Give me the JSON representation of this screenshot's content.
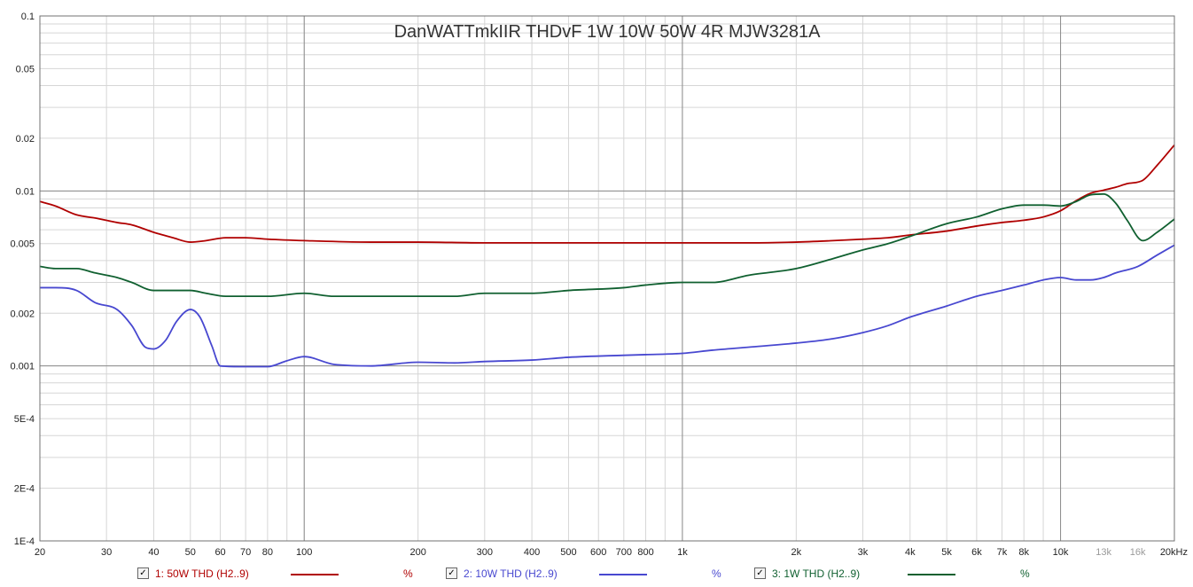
{
  "chart_data": {
    "type": "line",
    "title": "DanWATTmkIIR THDvF 1W 10W 50W 4R MJW3281A",
    "x_scale": "log",
    "y_scale": "log",
    "xlim": [
      20,
      20000
    ],
    "ylim": [
      0.0001,
      0.1
    ],
    "y_unit": "%",
    "grid": true,
    "x_ticks": [
      {
        "v": 20,
        "label": "20"
      },
      {
        "v": 30,
        "label": "30"
      },
      {
        "v": 40,
        "label": "40"
      },
      {
        "v": 50,
        "label": "50"
      },
      {
        "v": 60,
        "label": "60"
      },
      {
        "v": 70,
        "label": "70"
      },
      {
        "v": 80,
        "label": "80"
      },
      {
        "v": 100,
        "label": "100"
      },
      {
        "v": 200,
        "label": "200"
      },
      {
        "v": 300,
        "label": "300"
      },
      {
        "v": 400,
        "label": "400"
      },
      {
        "v": 500,
        "label": "500"
      },
      {
        "v": 600,
        "label": "600"
      },
      {
        "v": 700,
        "label": "700"
      },
      {
        "v": 800,
        "label": "800"
      },
      {
        "v": 1000,
        "label": "1k"
      },
      {
        "v": 2000,
        "label": "2k"
      },
      {
        "v": 3000,
        "label": "3k"
      },
      {
        "v": 4000,
        "label": "4k"
      },
      {
        "v": 5000,
        "label": "5k"
      },
      {
        "v": 6000,
        "label": "6k"
      },
      {
        "v": 7000,
        "label": "7k"
      },
      {
        "v": 8000,
        "label": "8k"
      },
      {
        "v": 10000,
        "label": "10k"
      },
      {
        "v": 13000,
        "label": "13k",
        "faint": true
      },
      {
        "v": 16000,
        "label": "16k",
        "faint": true
      },
      {
        "v": 20000,
        "label": "20kHz"
      }
    ],
    "y_ticks": [
      {
        "v": 0.1,
        "label": "0.1"
      },
      {
        "v": 0.05,
        "label": "0.05"
      },
      {
        "v": 0.02,
        "label": "0.02"
      },
      {
        "v": 0.01,
        "label": "0.01"
      },
      {
        "v": 0.005,
        "label": "0.005"
      },
      {
        "v": 0.002,
        "label": "0.002"
      },
      {
        "v": 0.001,
        "label": "0.001"
      },
      {
        "v": 0.0005,
        "label": "5E-4"
      },
      {
        "v": 0.0002,
        "label": "2E-4"
      },
      {
        "v": 0.0001,
        "label": "1E-4"
      }
    ],
    "series": [
      {
        "name": "1: 50W THD (H2..9)",
        "unit": "%",
        "color": "#b00000",
        "points": [
          [
            20,
            0.0087
          ],
          [
            22,
            0.0082
          ],
          [
            25,
            0.0073
          ],
          [
            28,
            0.007
          ],
          [
            32,
            0.0066
          ],
          [
            35,
            0.0064
          ],
          [
            40,
            0.0058
          ],
          [
            45,
            0.0054
          ],
          [
            50,
            0.0051
          ],
          [
            55,
            0.0052
          ],
          [
            62,
            0.0054
          ],
          [
            70,
            0.0054
          ],
          [
            80,
            0.0053
          ],
          [
            100,
            0.0052
          ],
          [
            150,
            0.0051
          ],
          [
            200,
            0.0051
          ],
          [
            300,
            0.00505
          ],
          [
            500,
            0.00505
          ],
          [
            700,
            0.00505
          ],
          [
            1000,
            0.00505
          ],
          [
            1500,
            0.00505
          ],
          [
            2000,
            0.0051
          ],
          [
            2500,
            0.0052
          ],
          [
            3000,
            0.0053
          ],
          [
            3500,
            0.0054
          ],
          [
            4000,
            0.0056
          ],
          [
            5000,
            0.0059
          ],
          [
            6000,
            0.0063
          ],
          [
            7000,
            0.0066
          ],
          [
            8000,
            0.0068
          ],
          [
            9000,
            0.0071
          ],
          [
            10000,
            0.0077
          ],
          [
            11000,
            0.0088
          ],
          [
            12000,
            0.0097
          ],
          [
            13000,
            0.0101
          ],
          [
            14000,
            0.0105
          ],
          [
            15000,
            0.011
          ],
          [
            16500,
            0.0115
          ],
          [
            18000,
            0.014
          ],
          [
            20000,
            0.0183
          ]
        ]
      },
      {
        "name": "2: 10W THD (H2..9)",
        "unit": "%",
        "color": "#4848d0",
        "points": [
          [
            20,
            0.0028
          ],
          [
            22,
            0.0028
          ],
          [
            25,
            0.0027
          ],
          [
            28,
            0.0023
          ],
          [
            32,
            0.0021
          ],
          [
            35,
            0.0017
          ],
          [
            38,
            0.00128
          ],
          [
            40,
            0.00125
          ],
          [
            43,
            0.0014
          ],
          [
            46,
            0.0018
          ],
          [
            50,
            0.0021
          ],
          [
            53,
            0.0019
          ],
          [
            57,
            0.0013
          ],
          [
            60,
            0.001
          ],
          [
            70,
            0.00099
          ],
          [
            80,
            0.00099
          ],
          [
            90,
            0.00107
          ],
          [
            100,
            0.00113
          ],
          [
            120,
            0.00102
          ],
          [
            150,
            0.001
          ],
          [
            200,
            0.00105
          ],
          [
            250,
            0.00104
          ],
          [
            300,
            0.00106
          ],
          [
            400,
            0.00108
          ],
          [
            500,
            0.00112
          ],
          [
            700,
            0.00115
          ],
          [
            800,
            0.00116
          ],
          [
            1000,
            0.00118
          ],
          [
            1200,
            0.00123
          ],
          [
            1500,
            0.00128
          ],
          [
            2000,
            0.00135
          ],
          [
            2500,
            0.00143
          ],
          [
            3000,
            0.00155
          ],
          [
            3500,
            0.0017
          ],
          [
            4000,
            0.0019
          ],
          [
            5000,
            0.0022
          ],
          [
            6000,
            0.0025
          ],
          [
            7000,
            0.0027
          ],
          [
            8000,
            0.0029
          ],
          [
            9000,
            0.0031
          ],
          [
            10000,
            0.0032
          ],
          [
            11000,
            0.0031
          ],
          [
            12000,
            0.0031
          ],
          [
            13000,
            0.0032
          ],
          [
            14000,
            0.0034
          ],
          [
            16000,
            0.0037
          ],
          [
            18000,
            0.0043
          ],
          [
            20000,
            0.0049
          ]
        ]
      },
      {
        "name": "3: 1W THD (H2..9)",
        "unit": "%",
        "color": "#106030",
        "points": [
          [
            20,
            0.0037
          ],
          [
            22,
            0.0036
          ],
          [
            25,
            0.0036
          ],
          [
            28,
            0.0034
          ],
          [
            32,
            0.0032
          ],
          [
            35,
            0.003
          ],
          [
            40,
            0.0027
          ],
          [
            45,
            0.0027
          ],
          [
            50,
            0.0027
          ],
          [
            55,
            0.0026
          ],
          [
            62,
            0.0025
          ],
          [
            70,
            0.0025
          ],
          [
            80,
            0.0025
          ],
          [
            100,
            0.0026
          ],
          [
            120,
            0.0025
          ],
          [
            150,
            0.0025
          ],
          [
            200,
            0.0025
          ],
          [
            250,
            0.0025
          ],
          [
            300,
            0.0026
          ],
          [
            400,
            0.0026
          ],
          [
            500,
            0.0027
          ],
          [
            700,
            0.0028
          ],
          [
            800,
            0.0029
          ],
          [
            1000,
            0.003
          ],
          [
            1200,
            0.003
          ],
          [
            1500,
            0.0033
          ],
          [
            2000,
            0.0036
          ],
          [
            2500,
            0.0041
          ],
          [
            3000,
            0.0046
          ],
          [
            3500,
            0.005
          ],
          [
            4000,
            0.0055
          ],
          [
            5000,
            0.0065
          ],
          [
            6000,
            0.0071
          ],
          [
            7000,
            0.0079
          ],
          [
            8000,
            0.0083
          ],
          [
            9000,
            0.0083
          ],
          [
            10000,
            0.0082
          ],
          [
            11000,
            0.0087
          ],
          [
            12000,
            0.0095
          ],
          [
            13000,
            0.0096
          ],
          [
            14000,
            0.0085
          ],
          [
            15000,
            0.0068
          ],
          [
            16500,
            0.0052
          ],
          [
            18000,
            0.0058
          ],
          [
            20000,
            0.0069
          ]
        ]
      }
    ]
  },
  "legend": [
    {
      "check": "✓",
      "label": "1: 50W THD (H2..9)",
      "unit": "%",
      "color": "#b00000"
    },
    {
      "check": "✓",
      "label": "2: 10W THD (H2..9)",
      "unit": "%",
      "color": "#4848d0"
    },
    {
      "check": "✓",
      "label": "3: 1W THD (H2..9)",
      "unit": "%",
      "color": "#106030"
    }
  ]
}
